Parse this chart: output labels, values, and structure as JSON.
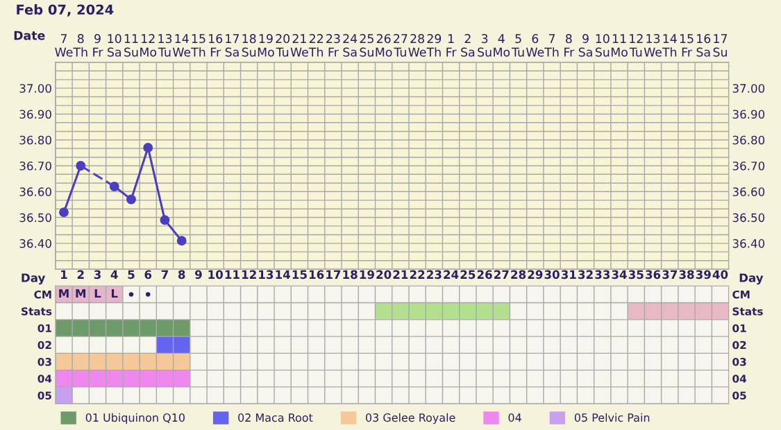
{
  "chart_data": [
    {
      "type": "line",
      "title": "Feb 07, 2024",
      "xlabel": "Date",
      "categories": [
        "7\nWe",
        "8\nTh",
        "9\nFr",
        "10\nSa",
        "11\nSu",
        "12\nMo",
        "13\nTu",
        "14\nWe",
        "15\nTh",
        "16\nFr",
        "17\nSa",
        "18\nSu",
        "19\nMo",
        "20\nTu",
        "21\nWe",
        "22\nTh",
        "23\nFr",
        "24\nSa",
        "25\nSu",
        "26\nMo",
        "27\nTu",
        "28\nWe",
        "29\nTh",
        "1\nFr",
        "2\nSa",
        "3\nSu",
        "4\nMo",
        "5\nTu",
        "6\nWe",
        "7\nTh",
        "8\nFr",
        "9\nSa",
        "10\nSu",
        "11\nMo",
        "12\nTu",
        "13\nWe",
        "14\nTh",
        "15\nFr",
        "16\nSa",
        "17\nSu"
      ],
      "series": [
        {
          "color": "#4b3fc0",
          "marker": "circle",
          "line_style": "solid",
          "values": [
            36.52,
            36.7,
            null,
            36.62,
            36.57,
            36.77,
            36.49,
            36.41,
            null,
            null,
            null,
            null,
            null,
            null,
            null,
            null,
            null,
            null,
            null,
            null,
            null,
            null,
            null,
            null,
            null,
            null,
            null,
            null,
            null,
            null,
            null,
            null,
            null,
            null,
            null,
            null,
            null,
            null,
            null,
            null
          ]
        },
        {
          "color": "#5044c4",
          "marker": "none",
          "line_style": "dashed",
          "values": [
            null,
            36.7,
            36.66,
            36.62,
            null,
            null,
            null,
            null,
            null,
            null,
            null,
            null,
            null,
            null,
            null,
            null,
            null,
            null,
            null,
            null,
            null,
            null,
            null,
            null,
            null,
            null,
            null,
            null,
            null,
            null,
            null,
            null,
            null,
            null,
            null,
            null,
            null,
            null,
            null,
            null
          ]
        }
      ],
      "ylim": [
        36.3,
        37.1
      ],
      "yticks": [
        {
          "value": 36.333,
          "label": null
        },
        {
          "value": 36.367,
          "label": null
        },
        {
          "value": 36.4,
          "label": "36.40"
        },
        {
          "value": 36.433,
          "label": null
        },
        {
          "value": 36.467,
          "label": null
        },
        {
          "value": 36.5,
          "label": "36.50"
        },
        {
          "value": 36.533,
          "label": null
        },
        {
          "value": 36.567,
          "label": null
        },
        {
          "value": 36.6,
          "label": "36.60"
        },
        {
          "value": 36.633,
          "label": null
        },
        {
          "value": 36.667,
          "label": null
        },
        {
          "value": 36.7,
          "label": "36.70"
        },
        {
          "value": 36.733,
          "label": null
        },
        {
          "value": 36.767,
          "label": null
        },
        {
          "value": 36.8,
          "label": "36.80"
        },
        {
          "value": 36.833,
          "label": null
        },
        {
          "value": 36.867,
          "label": null
        },
        {
          "value": 36.9,
          "label": "36.90"
        },
        {
          "value": 36.933,
          "label": null
        },
        {
          "value": 36.967,
          "label": null
        },
        {
          "value": 37.0,
          "label": "37.00"
        },
        {
          "value": 37.033,
          "label": null
        },
        {
          "value": 37.067,
          "label": null
        }
      ],
      "y2lim": [
        36.3,
        37.1
      ],
      "y2ticks": [
        {
          "value": 36.4,
          "label": "36.40"
        },
        {
          "value": 36.5,
          "label": "36.50"
        },
        {
          "value": 36.6,
          "label": "36.60"
        },
        {
          "value": 36.7,
          "label": "36.70"
        },
        {
          "value": 36.8,
          "label": "36.80"
        },
        {
          "value": 36.9,
          "label": "36.90"
        },
        {
          "value": 37.0,
          "label": "37.00"
        }
      ],
      "grid": true
    },
    {
      "type": "bar",
      "orientation": "horizontal",
      "xlabel": "Day",
      "categories": [
        "CM",
        "Stats",
        "01",
        "02",
        "03",
        "04",
        "05"
      ],
      "xlim": [
        0.5,
        40.5
      ],
      "xticks": [
        1,
        2,
        3,
        4,
        5,
        6,
        7,
        8,
        9,
        10,
        11,
        12,
        13,
        14,
        15,
        16,
        17,
        18,
        19,
        20,
        21,
        22,
        23,
        24,
        25,
        26,
        27,
        28,
        29,
        30,
        31,
        32,
        33,
        34,
        35,
        36,
        37,
        38,
        39,
        40
      ],
      "series": [
        {
          "color": "#e6b5c9",
          "values": [
            4,
            null,
            null,
            null,
            null,
            null,
            null
          ],
          "base": [
            0.5,
            null,
            null,
            null,
            null,
            null,
            null
          ]
        },
        {
          "color": "#b3e08e",
          "values": [
            null,
            8,
            null,
            null,
            null,
            null,
            null
          ],
          "base": [
            null,
            19.5,
            null,
            null,
            null,
            null,
            null
          ]
        },
        {
          "color": "#e8b8c4",
          "values": [
            null,
            6,
            null,
            null,
            null,
            null,
            null
          ],
          "base": [
            null,
            34.5,
            null,
            null,
            null,
            null,
            null
          ]
        },
        {
          "name": "01 Ubiquinon Q10",
          "color": "#6e9a6a",
          "values": [
            null,
            null,
            8,
            null,
            null,
            null,
            null
          ],
          "base": [
            null,
            null,
            0.5,
            null,
            null,
            null,
            null
          ]
        },
        {
          "name": "02 Maca Root",
          "color": "#6464f0",
          "values": [
            null,
            null,
            null,
            2,
            null,
            null,
            null
          ],
          "base": [
            null,
            null,
            null,
            6.5,
            null,
            null,
            null
          ]
        },
        {
          "name": "03 Gelee Royale",
          "color": "#f5c89a",
          "values": [
            null,
            null,
            null,
            null,
            8,
            null,
            null
          ],
          "base": [
            null,
            null,
            null,
            null,
            0.5,
            null,
            null
          ]
        },
        {
          "name": "04",
          "color": "#ee88ee",
          "values": [
            null,
            null,
            null,
            null,
            null,
            8,
            null
          ],
          "base": [
            null,
            null,
            null,
            null,
            null,
            0.5,
            null
          ]
        },
        {
          "name": "05 Pelvic Pain",
          "color": "#c8a0f0",
          "values": [
            null,
            null,
            null,
            null,
            null,
            null,
            1
          ],
          "base": [
            null,
            null,
            null,
            null,
            null,
            null,
            0.5
          ]
        },
        {
          "type": "scatter",
          "color": "#2a2060",
          "marker": "circle",
          "x": [
            "CM",
            "CM"
          ],
          "values": [
            5,
            6
          ]
        }
      ],
      "annotations": [
        {
          "text": "M",
          "x": 1,
          "y": "CM"
        },
        {
          "text": "M",
          "x": 2,
          "y": "CM"
        },
        {
          "text": "L",
          "x": 3,
          "y": "CM"
        },
        {
          "text": "L",
          "x": 4,
          "y": "CM"
        }
      ],
      "legend": "bottom",
      "grid": true
    }
  ]
}
